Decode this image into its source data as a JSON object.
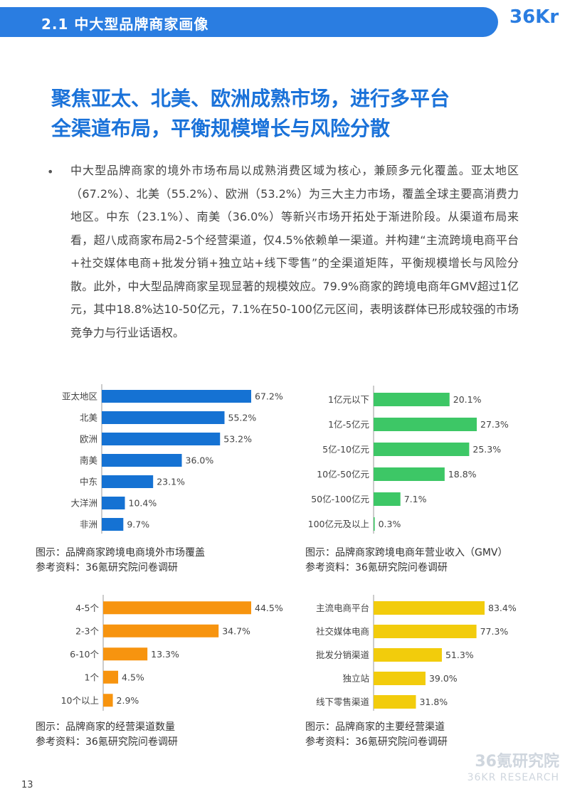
{
  "header": {
    "title": "2.1 中大型品牌商家画像",
    "logo_text": "36Kr"
  },
  "headline": {
    "line1": "聚焦亚太、北美、欧洲成熟市场，进行多平台",
    "line2": "全渠道布局，平衡规模增长与风险分散"
  },
  "body": {
    "bullet": "•",
    "paragraph": "中大型品牌商家的境外市场布局以成熟消费区域为核心，兼顾多元化覆盖。亚太地区（67.2%）、北美（55.2%）、欧洲（53.2%）为三大主力市场，覆盖全球主要高消费力地区。中东（23.1%）、南美（36.0%）等新兴市场开拓处于渐进阶段。从渠道布局来看，超八成商家布局2-5个经营渠道，仅4.5%依赖单一渠道。并构建“主流跨境电商平台+社交媒体电商+批发分销+独立站+线下零售”的全渠道矩阵，平衡规模增长与风险分散。此外，中大型品牌商家呈现显著的规模效应。79.9%商家的跨境电商年GMV超过1亿元，其中18.8%达10-50亿元，7.1%在50-100亿元区间，表明该群体已形成较强的市场竞争力与行业话语权。"
  },
  "captions": {
    "c1": {
      "title": "图示：品牌商家跨境电商境外市场覆盖",
      "source": "参考资料：36氪研究院问卷调研"
    },
    "c2": {
      "title": "图示：品牌商家跨境电商年营业收入（GMV）",
      "source": "参考资料：36氪研究院问卷调研"
    },
    "c3": {
      "title": "图示：品牌商家的经营渠道数量",
      "source": "参考资料：36氪研究院问卷调研"
    },
    "c4": {
      "title": "图示：品牌商家的主要经营渠道",
      "source": "参考资料：36氪研究院问卷调研"
    }
  },
  "chart_data": [
    {
      "type": "bar",
      "orientation": "horizontal",
      "color": "#1572d3",
      "categories": [
        "亚太地区",
        "北美",
        "欧洲",
        "南美",
        "中东",
        "大洋洲",
        "非洲"
      ],
      "values": [
        67.2,
        55.2,
        53.2,
        36.0,
        23.1,
        10.4,
        9.7
      ],
      "labels": [
        "67.2%",
        "55.2%",
        "53.2%",
        "36.0%",
        "23.1%",
        "10.4%",
        "9.7%"
      ],
      "xlim": [
        0,
        67.2
      ]
    },
    {
      "type": "bar",
      "orientation": "horizontal",
      "color": "#3dc766",
      "categories": [
        "1亿元以下",
        "1亿-5亿元",
        "5亿-10亿元",
        "10亿-50亿元",
        "50亿-100亿元",
        "100亿元及以上"
      ],
      "values": [
        20.1,
        27.3,
        25.3,
        18.8,
        7.1,
        0.3
      ],
      "labels": [
        "20.1%",
        "27.3%",
        "25.3%",
        "18.8%",
        "7.1%",
        "0.3%"
      ],
      "xlim": [
        0,
        27.3
      ]
    },
    {
      "type": "bar",
      "orientation": "horizontal",
      "color": "#f7940f",
      "categories": [
        "4-5个",
        "2-3个",
        "6-10个",
        "1个",
        "10个以上"
      ],
      "values": [
        44.5,
        34.7,
        13.3,
        4.5,
        2.9
      ],
      "labels": [
        "44.5%",
        "34.7%",
        "13.3%",
        "4.5%",
        "2.9%"
      ],
      "xlim": [
        0,
        44.5
      ]
    },
    {
      "type": "bar",
      "orientation": "horizontal",
      "color": "#f2cc0c",
      "categories": [
        "主流电商平台",
        "社交媒体电商",
        "批发分销渠道",
        "独立站",
        "线下零售渠道"
      ],
      "values": [
        83.4,
        77.3,
        51.3,
        39.0,
        31.8
      ],
      "labels": [
        "83.4%",
        "77.3%",
        "51.3%",
        "39.0%",
        "31.8%"
      ],
      "xlim": [
        0,
        83.4
      ]
    }
  ],
  "footer": {
    "page_number": "13",
    "watermark_cn": "36氪研究院",
    "watermark_en": "36KR RESEARCH"
  }
}
